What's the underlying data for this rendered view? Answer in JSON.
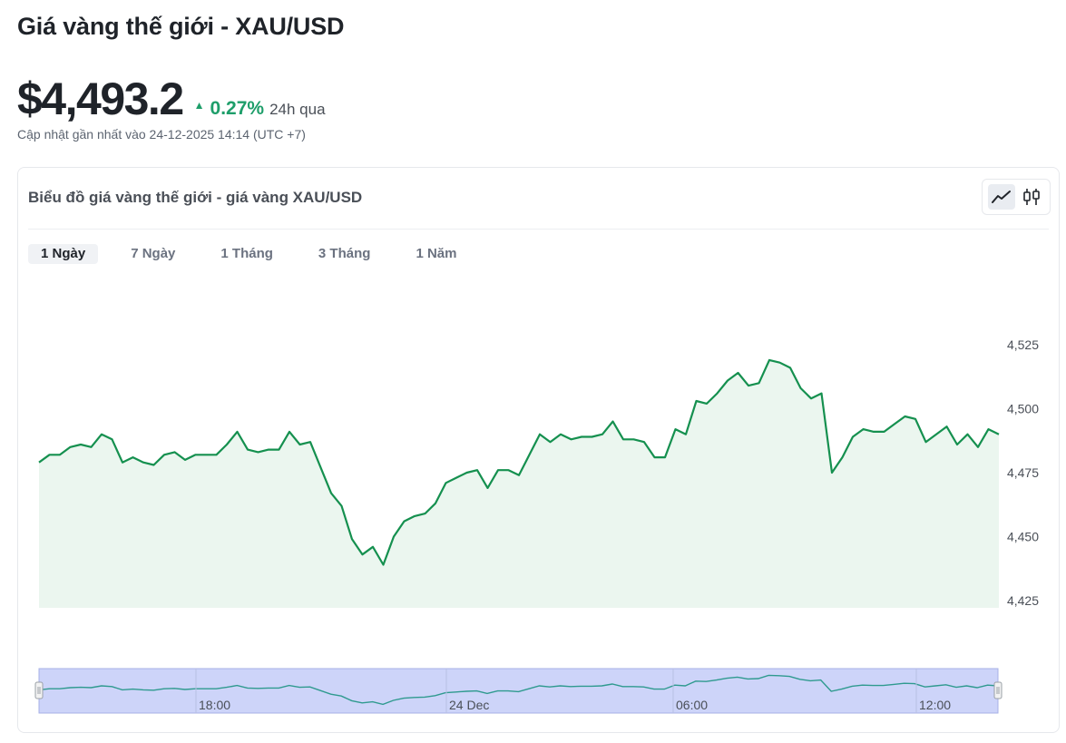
{
  "header": {
    "title": "Giá vàng thế giới - XAU/USD",
    "price": "$4,493.2",
    "change_pct": "0.27%",
    "change_period": "24h qua",
    "updated": "Cập nhật gần nhất vào 24-12-2025 14:14 (UTC +7)"
  },
  "chart_card": {
    "title": "Biểu đồ giá vàng thế giới - giá vàng XAU/USD",
    "type_buttons": [
      {
        "name": "line",
        "icon": "line-chart-icon",
        "active": true
      },
      {
        "name": "candlestick",
        "icon": "candlestick-icon",
        "active": false
      }
    ],
    "range_tabs": [
      {
        "label": "1 Ngày",
        "active": true
      },
      {
        "label": "7 Ngày",
        "active": false
      },
      {
        "label": "1 Tháng",
        "active": false
      },
      {
        "label": "3 Tháng",
        "active": false
      },
      {
        "label": "1 Năm",
        "active": false
      }
    ]
  },
  "colors": {
    "line": "#15904f",
    "area": "#ebf6ef",
    "positive": "#1e9e6a",
    "navigator_fill": "#cdd4f9",
    "navigator_border": "#a7b0e6"
  },
  "chart_data": {
    "type": "area",
    "title": "",
    "xlabel": "",
    "ylabel": "",
    "ylim": [
      4425,
      4525
    ],
    "yticks": [
      "4,525",
      "4,500",
      "4,475",
      "4,450",
      "4,425"
    ],
    "navigator_labels": [
      "18:00",
      "24 Dec",
      "06:00",
      "12:00"
    ],
    "values": [
      4479,
      4482,
      4482,
      4485,
      4486,
      4485,
      4490,
      4488,
      4479,
      4481,
      4479,
      4478,
      4482,
      4483,
      4480,
      4482,
      4482,
      4482,
      4486,
      4491,
      4484,
      4483,
      4484,
      4484,
      4491,
      4486,
      4487,
      4477,
      4467,
      4462,
      4449,
      4443,
      4446,
      4439,
      4450,
      4456,
      4458,
      4459,
      4463,
      4471,
      4473,
      4475,
      4476,
      4469,
      4476,
      4476,
      4474,
      4482,
      4490,
      4487,
      4490,
      4488,
      4489,
      4489,
      4490,
      4495,
      4488,
      4488,
      4487,
      4481,
      4481,
      4492,
      4490,
      4503,
      4502,
      4506,
      4511,
      4514,
      4509,
      4510,
      4519,
      4518,
      4516,
      4508,
      4504,
      4506,
      4475,
      4481,
      4489,
      4492,
      4491,
      4491,
      4494,
      4497,
      4496,
      4487,
      4490,
      4493,
      4486,
      4490,
      4485,
      4492,
      4490
    ]
  }
}
